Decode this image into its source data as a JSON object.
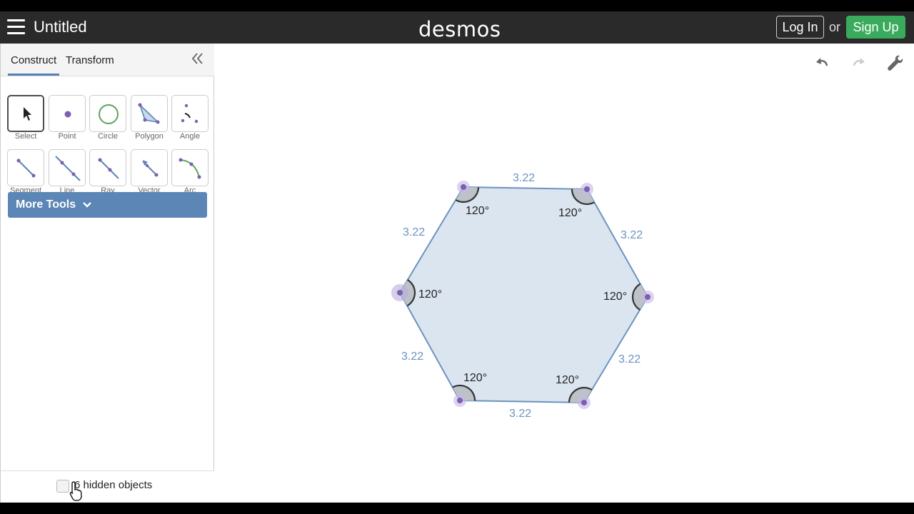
{
  "header": {
    "title": "Untitled",
    "logo": "desmos",
    "login_label": "Log In",
    "or_label": "or",
    "signup_label": "Sign Up"
  },
  "sidebar": {
    "tabs": [
      {
        "label": "Construct",
        "active": true
      },
      {
        "label": "Transform",
        "active": false
      }
    ],
    "tools_row1": [
      {
        "label": "Select",
        "icon": "arrow-cursor-icon",
        "selected": true
      },
      {
        "label": "Point",
        "icon": "point-icon"
      },
      {
        "label": "Circle",
        "icon": "circle-icon"
      },
      {
        "label": "Polygon",
        "icon": "polygon-icon"
      },
      {
        "label": "Angle",
        "icon": "angle-icon"
      }
    ],
    "tools_row2": [
      {
        "label": "Segment",
        "icon": "segment-icon"
      },
      {
        "label": "Line",
        "icon": "line-icon"
      },
      {
        "label": "Ray",
        "icon": "ray-icon"
      },
      {
        "label": "Vector",
        "icon": "vector-icon"
      },
      {
        "label": "Arc",
        "icon": "arc-icon"
      }
    ],
    "more_tools_label": "More Tools",
    "hidden_objects_label": "6 hidden objects"
  },
  "canvas": {
    "side_lengths": [
      "3.22",
      "3.22",
      "3.22",
      "3.22",
      "3.22",
      "3.22"
    ],
    "angles": [
      "120°",
      "120°",
      "120°",
      "120°",
      "120°",
      "120°"
    ]
  },
  "colors": {
    "topbar": "#2a2a2a",
    "signup": "#3aab5c",
    "accent": "#5b86b5",
    "polygon_fill": "#dbe5f0",
    "polygon_stroke": "#6b93c0",
    "point": "#7b5fb0",
    "length_label": "#6b93c0"
  }
}
